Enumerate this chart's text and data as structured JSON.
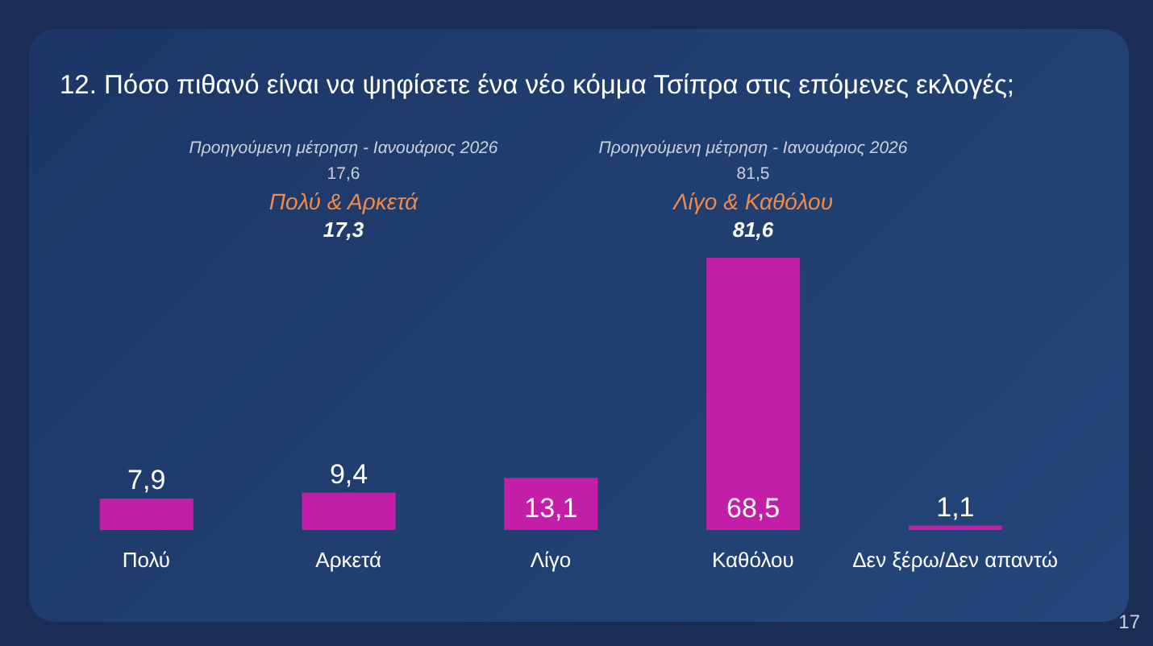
{
  "chart_data": {
    "type": "bar",
    "title": "12. Πόσο πιθανό είναι να ψηφίσετε ένα νέο κόμμα Τσίπρα στις επόμενες εκλογές;",
    "categories": [
      "Πολύ",
      "Αρκετά",
      "Λίγο",
      "Καθόλου",
      "Δεν ξέρω/Δεν απαντώ"
    ],
    "values": [
      7.9,
      9.4,
      13.1,
      68.5,
      1.1
    ],
    "value_labels": [
      "7,9",
      "9,4",
      "13,1",
      "68,5",
      "1,1"
    ],
    "color": "#c21ea8",
    "annotations": [
      "Προηγούμενη μέτρηση - Ιανουάριος 2026",
      "17,6",
      "Πολύ & Αρκετά",
      "17,3",
      "Προηγούμενη μέτρηση - Ιανουάριος 2026",
      "81,5",
      "Λίγο & Καθόλου",
      "81,6",
      "17"
    ]
  }
}
